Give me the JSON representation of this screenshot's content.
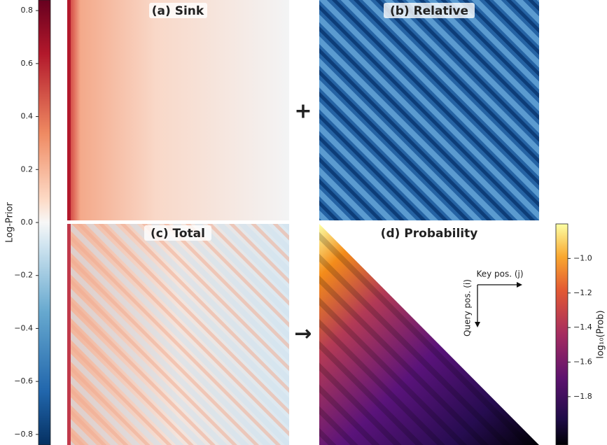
{
  "chart_data": [
    {
      "type": "heatmap",
      "title": "(a) Sink"
    },
    {
      "type": "heatmap",
      "title": "(b) Relative"
    },
    {
      "type": "heatmap",
      "title": "(c) Total"
    },
    {
      "type": "heatmap",
      "title": "(d) Probability",
      "x_annotation": "Key pos. (j)",
      "y_annotation": "Query pos. (i)"
    },
    {
      "type": "colorbar",
      "label": "Log-Prior",
      "ylim": [
        -0.84,
        0.84
      ],
      "yticks": [
        0.8,
        0.6,
        0.4,
        0.2,
        {
          "value": 0.0,
          "label": "0.0"
        },
        {
          "value": -0.2,
          "label": "−0.2"
        },
        {
          "value": -0.4,
          "label": "−0.4"
        },
        {
          "value": -0.6,
          "label": "−0.6"
        },
        {
          "value": -0.8,
          "label": "−0.8"
        }
      ]
    },
    {
      "type": "colorbar",
      "label": "log₁₀(Prob)",
      "ylim": [
        -2.08,
        -0.8
      ],
      "yticks": [
        {
          "value": -1.0,
          "label": "−1.0"
        },
        {
          "value": -1.2,
          "label": "−1.2"
        },
        {
          "value": -1.4,
          "label": "−1.4"
        },
        {
          "value": -1.6,
          "label": "−1.6"
        },
        {
          "value": -1.8,
          "label": "−1.8"
        }
      ]
    }
  ]
}
